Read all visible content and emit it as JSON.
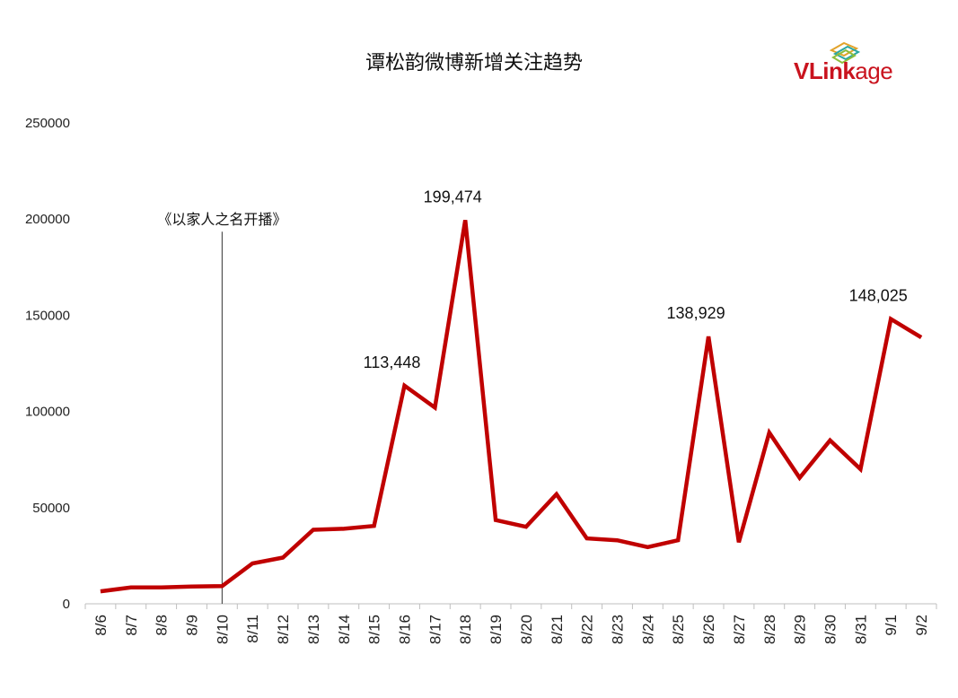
{
  "chart_data": {
    "type": "line",
    "title": "谭松韵微博新增关注趋势",
    "xlabel": "",
    "ylabel": "",
    "ylim": [
      0,
      250000
    ],
    "yticks": [
      0,
      50000,
      100000,
      150000,
      200000,
      250000
    ],
    "grid": false,
    "categories": [
      "8/6",
      "8/7",
      "8/8",
      "8/9",
      "8/10",
      "8/11",
      "8/12",
      "8/13",
      "8/14",
      "8/15",
      "8/16",
      "8/17",
      "8/18",
      "8/19",
      "8/20",
      "8/21",
      "8/22",
      "8/23",
      "8/24",
      "8/25",
      "8/26",
      "8/27",
      "8/28",
      "8/29",
      "8/30",
      "8/31",
      "9/1",
      "9/2"
    ],
    "series": [
      {
        "values": [
          6500,
          8500,
          8500,
          9000,
          9200,
          21000,
          24000,
          38500,
          39000,
          40500,
          113448,
          102000,
          199474,
          43500,
          40000,
          57000,
          34000,
          33000,
          29500,
          33000,
          138929,
          32000,
          89000,
          65500,
          85000,
          70000,
          148025,
          138500
        ],
        "color": "#c00000"
      }
    ],
    "data_labels": [
      {
        "category": "8/16",
        "text": "113,448"
      },
      {
        "category": "8/18",
        "text": "199,474"
      },
      {
        "category": "8/26",
        "text": "138,929"
      },
      {
        "category": "9/1",
        "text": "148,025"
      }
    ],
    "annotations": [
      {
        "category": "8/10",
        "text": "《以家人之名开播》",
        "type": "vertical-line"
      }
    ]
  },
  "logo": {
    "text_bold": "VLink",
    "text_thin": "age"
  }
}
